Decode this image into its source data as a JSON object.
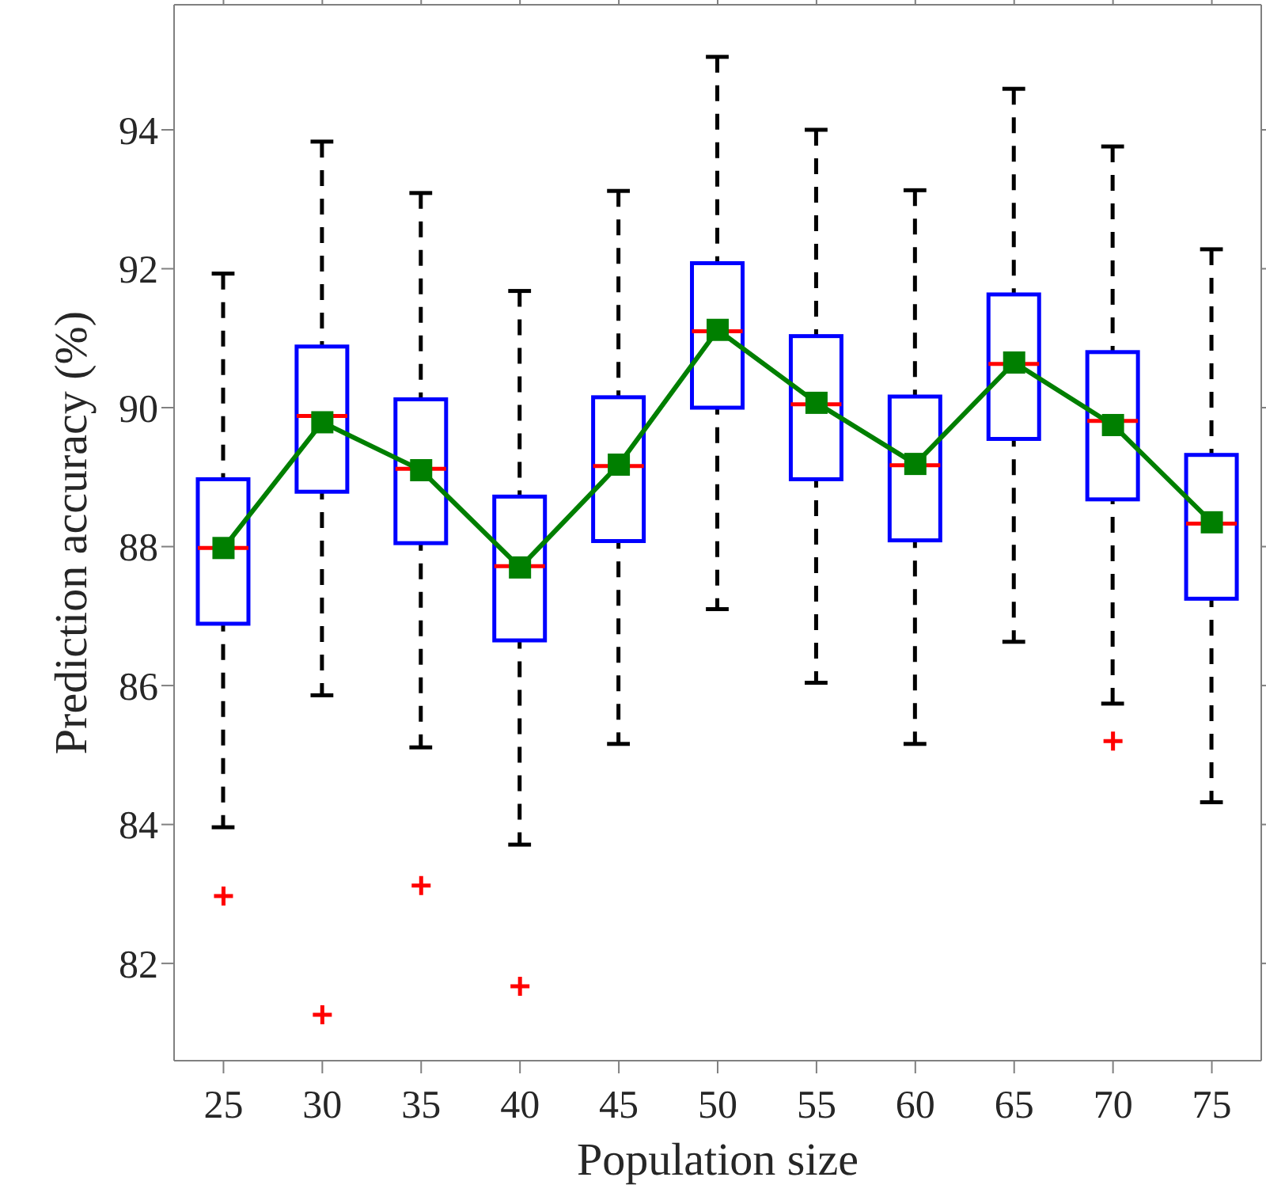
{
  "chart_data": {
    "type": "box",
    "xlabel": "Population size",
    "ylabel": "Prediction accuracy (%)",
    "categories": [
      "25",
      "30",
      "35",
      "40",
      "45",
      "50",
      "55",
      "60",
      "65",
      "70",
      "75"
    ],
    "ylim": [
      80.6,
      95.8
    ],
    "yticks": [
      82,
      84,
      86,
      88,
      90,
      92,
      94
    ],
    "series": [
      {
        "type": "box",
        "color": "#0000ff",
        "boxes": [
          {
            "low": 83.96,
            "q1": 86.89,
            "median": 87.98,
            "q3": 88.97,
            "high": 91.93,
            "outliers": [
              82.97
            ]
          },
          {
            "low": 85.86,
            "q1": 88.79,
            "median": 89.88,
            "q3": 90.88,
            "high": 93.83,
            "outliers": [
              81.26
            ]
          },
          {
            "low": 85.11,
            "q1": 88.05,
            "median": 89.12,
            "q3": 90.12,
            "high": 93.09,
            "outliers": [
              83.12
            ]
          },
          {
            "low": 83.71,
            "q1": 86.65,
            "median": 87.72,
            "q3": 88.72,
            "high": 91.68,
            "outliers": [
              81.67
            ]
          },
          {
            "low": 85.16,
            "q1": 88.08,
            "median": 89.16,
            "q3": 90.15,
            "high": 93.12
          },
          {
            "low": 87.1,
            "q1": 90.0,
            "median": 91.1,
            "q3": 92.08,
            "high": 95.05
          },
          {
            "low": 86.04,
            "q1": 88.97,
            "median": 90.05,
            "q3": 91.03,
            "high": 94.0
          },
          {
            "low": 85.16,
            "q1": 88.09,
            "median": 89.17,
            "q3": 90.16,
            "high": 93.13
          },
          {
            "low": 86.63,
            "q1": 89.55,
            "median": 90.63,
            "q3": 91.63,
            "high": 94.59
          },
          {
            "low": 85.74,
            "q1": 88.68,
            "median": 89.81,
            "q3": 90.8,
            "high": 93.76,
            "outliers": [
              85.2
            ]
          },
          {
            "low": 84.32,
            "q1": 87.25,
            "median": 88.33,
            "q3": 89.32,
            "high": 92.28
          }
        ]
      },
      {
        "type": "line",
        "color": "#007f00",
        "marker": "square",
        "values": [
          87.98,
          89.79,
          89.1,
          87.7,
          89.18,
          91.12,
          90.07,
          89.19,
          90.65,
          89.75,
          88.35
        ]
      }
    ]
  }
}
